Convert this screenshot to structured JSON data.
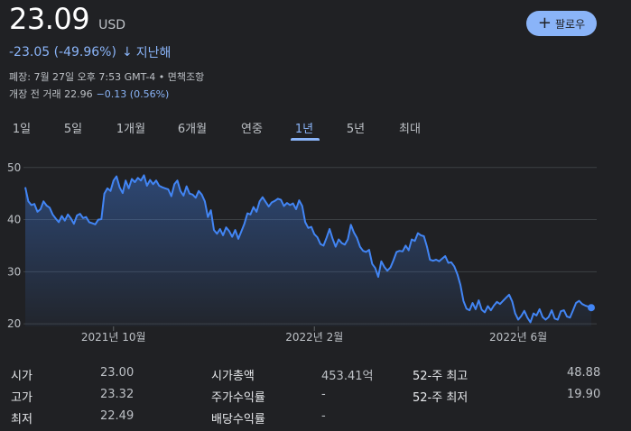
{
  "quote": {
    "price": "23.09",
    "currency": "USD",
    "change": "-23.05 (-49.96%)",
    "change_arrow": "↓",
    "change_period": "지난해",
    "meta": "폐장: 7월 27일 오후 7:53 GMT-4 • 면책조항",
    "premarket_label": "개장 전 거래 22.96",
    "premarket_change": "−0.13 (0.56%)"
  },
  "follow_button": {
    "icon": "plus-icon",
    "label": "팔로우"
  },
  "tabs": [
    {
      "label": "1일",
      "active": false
    },
    {
      "label": "5일",
      "active": false
    },
    {
      "label": "1개월",
      "active": false
    },
    {
      "label": "6개월",
      "active": false
    },
    {
      "label": "연중",
      "active": false
    },
    {
      "label": "1년",
      "active": true
    },
    {
      "label": "5년",
      "active": false
    },
    {
      "label": "최대",
      "active": false
    }
  ],
  "colors": {
    "line": "#4285f4",
    "accent": "#8ab4f8",
    "background": "#202124",
    "grid": "#3c4043"
  },
  "chart_data": {
    "type": "area",
    "y_ticks": [
      20,
      30,
      40,
      50
    ],
    "ylim": [
      19.5,
      51
    ],
    "x_ticks": [
      {
        "label": "2021년 10월",
        "index": 29
      },
      {
        "label": "2022년 2월",
        "index": 95
      },
      {
        "label": "2022년 6월",
        "index": 162
      }
    ],
    "values": [
      46.2,
      43.5,
      42.8,
      43.0,
      41.5,
      42.0,
      43.5,
      42.7,
      42.3,
      41.0,
      40.2,
      39.5,
      40.7,
      39.8,
      41.0,
      40.2,
      39.2,
      40.8,
      41.1,
      40.3,
      40.5,
      39.5,
      39.3,
      39.1,
      40.0,
      40.1,
      45.0,
      46.0,
      45.5,
      47.5,
      48.3,
      46.2,
      45.1,
      47.5,
      46.0,
      47.8,
      47.2,
      48.0,
      47.5,
      48.5,
      46.5,
      47.6,
      46.8,
      47.5,
      46.5,
      46.2,
      46.0,
      45.8,
      44.5,
      46.8,
      47.5,
      45.5,
      44.6,
      46.4,
      45.0,
      44.8,
      44.2,
      45.5,
      44.8,
      43.5,
      40.5,
      41.8,
      38.0,
      37.3,
      38.2,
      37.0,
      38.5,
      37.8,
      36.7,
      38.0,
      36.3,
      37.7,
      39.2,
      41.2,
      41.0,
      42.4,
      41.5,
      43.5,
      44.3,
      43.4,
      42.5,
      43.3,
      43.6,
      44.0,
      43.8,
      42.6,
      43.2,
      42.8,
      43.1,
      42.0,
      43.7,
      42.6,
      39.5,
      38.4,
      38.6,
      37.2,
      36.6,
      35.3,
      35.0,
      36.5,
      38.2,
      36.3,
      34.8,
      36.2,
      35.5,
      35.2,
      36.2,
      39.0,
      37.5,
      36.5,
      34.8,
      34.0,
      33.8,
      34.2,
      31.5,
      30.7,
      29.0,
      32.0,
      30.9,
      30.2,
      30.8,
      32.2,
      33.8,
      34.0,
      33.9,
      35.0,
      34.1,
      36.2,
      35.9,
      37.4,
      37.0,
      36.8,
      34.8,
      32.3,
      32.1,
      32.3,
      32.0,
      32.5,
      33.0,
      31.7,
      31.8,
      31.0,
      29.5,
      27.5,
      24.4,
      22.9,
      22.6,
      24.0,
      22.8,
      24.5,
      22.7,
      22.2,
      23.4,
      22.6,
      23.5,
      24.2,
      23.8,
      24.4,
      25.0,
      25.6,
      24.3,
      22.0,
      20.8,
      21.5,
      22.5,
      21.2,
      20.3,
      22.0,
      21.6,
      22.8,
      21.3,
      20.8,
      21.3,
      22.6,
      21.0,
      20.8,
      22.4,
      22.6,
      21.4,
      21.2,
      22.6,
      24.0,
      24.4,
      23.8,
      23.5,
      23.3,
      23.1
    ],
    "grid": true
  },
  "stats": [
    {
      "label": "시가",
      "value": "23.00"
    },
    {
      "label": "고가",
      "value": "23.32"
    },
    {
      "label": "최저",
      "value": "22.49"
    },
    {
      "label": "시가총액",
      "value": "453.41억"
    },
    {
      "label": "주가수익률",
      "value": "-"
    },
    {
      "label": "배당수익률",
      "value": "-"
    },
    {
      "label": "52-주 최고",
      "value": "48.88"
    },
    {
      "label": "52-주 최저",
      "value": "19.90"
    }
  ]
}
